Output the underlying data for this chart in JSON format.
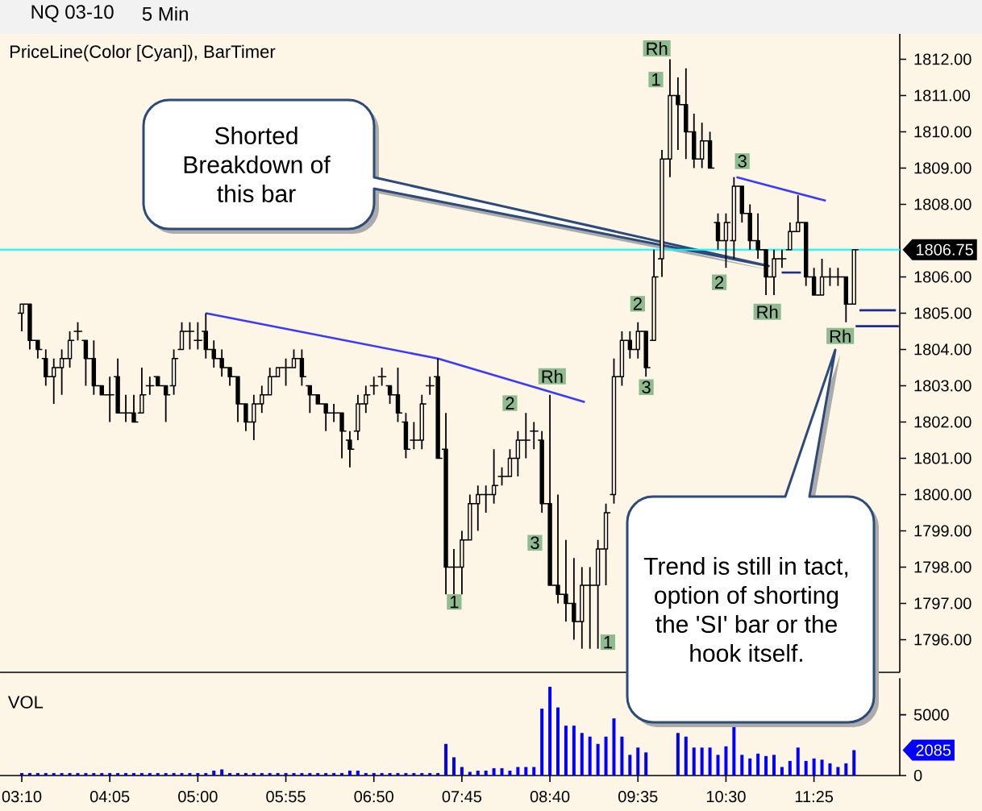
{
  "chart_data": [
    {
      "type": "candlestick",
      "title": "NQ 03-10",
      "subtitle": "5 Min",
      "x": [
        3.1667,
        3.25,
        3.3333,
        3.4167,
        3.5,
        3.5833,
        3.6667,
        3.75,
        3.8333,
        3.9167,
        4,
        4.0833,
        4.1667,
        4.25,
        4.3333,
        4.4167,
        4.5,
        4.5833,
        4.6667,
        4.75,
        4.8333,
        4.9167,
        5,
        5.0833,
        5.1667,
        5.25,
        5.3333,
        5.4167,
        5.5,
        5.5833,
        5.6667,
        5.75,
        5.8333,
        5.9167,
        6,
        6.0833,
        6.1667,
        6.25,
        6.3333,
        6.4167,
        6.5,
        6.5833,
        6.6667,
        6.75,
        6.8333,
        6.9167,
        7,
        7.0833,
        7.1667,
        7.25,
        7.3333,
        7.4167,
        7.5,
        7.5833,
        7.6667,
        7.75,
        7.8333,
        7.9167,
        8,
        8.0833,
        8.1667,
        8.25,
        8.3333,
        8.4167,
        8.5,
        8.5833,
        8.6667,
        8.75,
        8.8333,
        8.9167,
        9,
        9.0833,
        9.1667,
        9.25,
        9.3333,
        9.4167,
        9.5,
        9.5833,
        9.6667,
        9.75,
        9.8333,
        9.9167,
        10,
        10.0833,
        10.1667,
        10.25,
        10.3333,
        10.4167,
        10.5,
        10.5833,
        10.6667,
        10.75,
        10.8333,
        10.9167,
        11,
        11.0833,
        11.1667,
        11.25,
        11.3333,
        11.4167,
        11.5,
        11.5833,
        11.6667,
        11.75,
        11.8333
      ],
      "ohlc": [
        [
          1805.0,
          1805.25,
          1804.5,
          1805.25
        ],
        [
          1805.25,
          1805.25,
          1804.0,
          1804.25
        ],
        [
          1804.25,
          1804.25,
          1803.75,
          1804.0
        ],
        [
          1803.75,
          1804.0,
          1803.0,
          1803.25
        ],
        [
          1803.25,
          1803.75,
          1802.5,
          1803.5
        ],
        [
          1803.5,
          1804.0,
          1802.75,
          1803.75
        ],
        [
          1803.75,
          1804.5,
          1803.5,
          1804.25
        ],
        [
          1804.5,
          1804.75,
          1804.25,
          1804.5
        ],
        [
          1804.25,
          1804.25,
          1803.0,
          1803.75
        ],
        [
          1803.75,
          1804.25,
          1802.75,
          1803.0
        ],
        [
          1803.0,
          1803.0,
          1802.75,
          1802.75
        ],
        [
          1802.75,
          1803.25,
          1802.0,
          1802.75
        ],
        [
          1803.25,
          1803.75,
          1802.25,
          1802.25
        ],
        [
          1802.25,
          1802.75,
          1802.0,
          1802.25
        ],
        [
          1802.25,
          1802.75,
          1802.0,
          1802.0
        ],
        [
          1802.25,
          1803.5,
          1802.25,
          1802.75
        ],
        [
          1803.0,
          1803.25,
          1802.75,
          1803.0
        ],
        [
          1803.25,
          1803.25,
          1803.0,
          1803.0
        ],
        [
          1803.0,
          1803.0,
          1802.0,
          1802.75
        ],
        [
          1803.0,
          1804.0,
          1802.75,
          1803.75
        ],
        [
          1804.0,
          1804.75,
          1804.0,
          1804.5
        ],
        [
          1804.5,
          1804.75,
          1804.0,
          1804.5
        ],
        [
          1804.25,
          1804.75,
          1804.0,
          1804.25
        ],
        [
          1804.5,
          1805.0,
          1803.75,
          1804.0
        ],
        [
          1804.0,
          1804.25,
          1803.5,
          1803.75
        ],
        [
          1803.75,
          1804.0,
          1803.25,
          1803.5
        ],
        [
          1803.5,
          1803.5,
          1803.0,
          1803.25
        ],
        [
          1803.25,
          1803.25,
          1802.0,
          1802.5
        ],
        [
          1802.5,
          1802.5,
          1801.75,
          1802.0
        ],
        [
          1802.0,
          1802.75,
          1801.5,
          1802.5
        ],
        [
          1802.5,
          1803.0,
          1802.25,
          1802.75
        ],
        [
          1802.75,
          1803.5,
          1802.75,
          1803.25
        ],
        [
          1803.25,
          1803.5,
          1803.25,
          1803.5
        ],
        [
          1803.5,
          1803.75,
          1803.0,
          1803.5
        ],
        [
          1803.5,
          1804.0,
          1803.5,
          1803.75
        ],
        [
          1803.75,
          1804.0,
          1803.0,
          1803.25
        ],
        [
          1803.0,
          1803.0,
          1802.25,
          1802.75
        ],
        [
          1802.75,
          1802.75,
          1802.5,
          1802.5
        ],
        [
          1802.5,
          1802.5,
          1801.75,
          1802.25
        ],
        [
          1802.25,
          1802.5,
          1802.0,
          1802.25
        ],
        [
          1802.25,
          1802.25,
          1801.0,
          1801.75
        ],
        [
          1801.5,
          1801.75,
          1800.75,
          1801.25
        ],
        [
          1801.75,
          1802.75,
          1801.5,
          1802.5
        ],
        [
          1802.5,
          1803.0,
          1802.25,
          1802.75
        ],
        [
          1803.0,
          1803.25,
          1802.75,
          1803.0
        ],
        [
          1803.25,
          1803.5,
          1803.0,
          1803.25
        ],
        [
          1803.0,
          1803.0,
          1802.5,
          1802.75
        ],
        [
          1802.75,
          1803.5,
          1802.0,
          1802.25
        ],
        [
          1802.0,
          1802.25,
          1801.0,
          1801.25
        ],
        [
          1801.5,
          1802.0,
          1801.25,
          1801.5
        ],
        [
          1801.5,
          1802.75,
          1801.25,
          1802.5
        ],
        [
          1803.0,
          1803.25,
          1802.75,
          1803.0
        ],
        [
          1803.25,
          1803.75,
          1801.0,
          1801.0
        ],
        [
          1801.25,
          1802.25,
          1797.25,
          1798.0
        ],
        [
          1798.0,
          1798.5,
          1797.25,
          1798.0
        ],
        [
          1798.0,
          1799.0,
          1797.25,
          1798.75
        ],
        [
          1798.75,
          1800.0,
          1798.75,
          1799.75
        ],
        [
          1799.75,
          1800.25,
          1799.0,
          1800.0
        ],
        [
          1800.0,
          1800.25,
          1799.5,
          1800.0
        ],
        [
          1800.0,
          1801.25,
          1799.75,
          1800.25
        ],
        [
          1800.5,
          1800.75,
          1800.25,
          1800.5
        ],
        [
          1800.5,
          1801.25,
          1800.5,
          1801.0
        ],
        [
          1801.0,
          1801.75,
          1800.5,
          1801.5
        ],
        [
          1801.5,
          1802.25,
          1801.0,
          1801.5
        ],
        [
          1801.75,
          1802.0,
          1801.25,
          1801.75
        ],
        [
          1801.5,
          1801.75,
          1799.5,
          1799.75
        ],
        [
          1799.75,
          1802.75,
          1797.5,
          1797.5
        ],
        [
          1797.5,
          1800.0,
          1797.0,
          1797.25
        ],
        [
          1797.25,
          1798.75,
          1796.5,
          1797.0
        ],
        [
          1797.0,
          1798.25,
          1796.0,
          1796.5
        ],
        [
          1796.5,
          1798.0,
          1795.75,
          1797.5
        ],
        [
          1797.5,
          1798.0,
          1795.75,
          1797.5
        ],
        [
          1797.5,
          1798.75,
          1795.75,
          1798.5
        ],
        [
          1798.5,
          1799.75,
          1797.5,
          1799.5
        ],
        [
          1800.0,
          1803.75,
          1799.75,
          1803.25
        ],
        [
          1803.25,
          1804.5,
          1803.0,
          1804.25
        ],
        [
          1804.25,
          1804.5,
          1803.75,
          1804.0
        ],
        [
          1804.0,
          1804.75,
          1803.75,
          1804.5
        ],
        [
          1804.5,
          1804.5,
          1803.25,
          1803.5
        ],
        [
          1804.25,
          1806.75,
          1804.25,
          1806.0
        ],
        [
          1806.5,
          1809.5,
          1806.0,
          1809.25
        ],
        [
          1809.25,
          1812.0,
          1808.75,
          1811.0
        ],
        [
          1811.0,
          1811.5,
          1809.5,
          1810.75
        ],
        [
          1810.75,
          1811.75,
          1809.25,
          1810.0
        ],
        [
          1810.0,
          1810.5,
          1809.0,
          1809.25
        ],
        [
          1809.25,
          1810.25,
          1809.0,
          1809.75
        ],
        [
          1809.75,
          1810.0,
          1809.0,
          1809.0
        ],
        [
          1807.5,
          1807.75,
          1806.75,
          1807.0
        ],
        [
          1807.0,
          1807.75,
          1806.25,
          1807.5
        ],
        [
          1807.0,
          1808.75,
          1806.5,
          1808.5
        ],
        [
          1808.5,
          1808.5,
          1807.5,
          1807.75
        ],
        [
          1807.75,
          1808.0,
          1806.75,
          1807.0
        ],
        [
          1807.0,
          1807.75,
          1806.5,
          1806.75
        ],
        [
          1806.75,
          1806.75,
          1805.5,
          1806.0
        ],
        [
          1806.0,
          1806.75,
          1805.5,
          1806.5
        ],
        [
          1806.5,
          1806.75,
          1806.25,
          1806.5
        ],
        [
          1806.75,
          1807.5,
          1806.75,
          1807.25
        ],
        [
          1807.25,
          1808.25,
          1807.25,
          1807.5
        ],
        [
          1807.5,
          1807.5,
          1805.75,
          1806.0
        ],
        [
          1806.0,
          1806.25,
          1805.5,
          1805.5
        ],
        [
          1805.5,
          1806.5,
          1805.5,
          1806.0
        ],
        [
          1806.0,
          1806.25,
          1805.75,
          1806.0
        ],
        [
          1806.0,
          1806.25,
          1805.75,
          1806.0
        ],
        [
          1806.0,
          1806.0,
          1804.75,
          1805.25
        ],
        [
          1805.25,
          1806.75,
          1805.25,
          1806.75
        ]
      ],
      "color": "#000000",
      "series": [
        {
          "type": "line",
          "x": [
            5.0833,
            7.5,
            9.03
          ],
          "values": [
            1805.0,
            1803.75,
            1802.55
          ],
          "color": "#3a3aff"
        },
        {
          "type": "line",
          "x": [
            10.61,
            11.54
          ],
          "values": [
            1808.75,
            1808.1
          ],
          "color": "#3a3aff"
        },
        {
          "type": "line",
          "x": [
            11.08,
            11.28
          ],
          "values": [
            1806.12,
            1806.12
          ],
          "color": "#1c2c8c"
        },
        {
          "type": "line",
          "x": [
            11.89,
            12.27
          ],
          "values": [
            1805.08,
            1805.08
          ],
          "color": "#1c2c8c"
        },
        {
          "type": "line",
          "x": [
            11.85,
            12.3
          ],
          "values": [
            1804.64,
            1804.64
          ],
          "color": "#1c2c8c"
        }
      ],
      "ref_lines": [
        {
          "axis": "y",
          "value": 1806.75,
          "label": "1806.75",
          "color": "#00ffff"
        }
      ],
      "xlim": [
        2.94,
        12.31
      ],
      "ylim": [
        1795.1,
        1812.7
      ],
      "yticks": [
        {
          "value": 1796,
          "label": "1796.00"
        },
        {
          "value": 1797,
          "label": "1797.00"
        },
        {
          "value": 1798,
          "label": "1798.00"
        },
        {
          "value": 1799,
          "label": "1799.00"
        },
        {
          "value": 1800,
          "label": "1800.00"
        },
        {
          "value": 1801,
          "label": "1801.00"
        },
        {
          "value": 1802,
          "label": "1802.00"
        },
        {
          "value": 1803,
          "label": "1803.00"
        },
        {
          "value": 1804,
          "label": "1804.00"
        },
        {
          "value": 1805,
          "label": "1805.00"
        },
        {
          "value": 1806,
          "label": "1806.00"
        },
        {
          "value": 1808,
          "label": "1808.00"
        },
        {
          "value": 1809,
          "label": "1809.00"
        },
        {
          "value": 1810,
          "label": "1810.00"
        },
        {
          "value": 1811,
          "label": "1811.00"
        },
        {
          "value": 1812,
          "label": "1812.00"
        }
      ],
      "tick_labels": "y",
      "annotations": [
        "PriceLine(Color [Cyan]), BarTimer",
        "Shorted Breakdown of this bar",
        "Trend is still in tact, option of shorting the 'SI' bar or the hook itself.",
        {
          "text": "1",
          "x": 7.67,
          "y": 1797.04
        },
        {
          "text": "2",
          "x": 8.25,
          "y": 1802.52
        },
        {
          "text": "3",
          "x": 8.51,
          "y": 1798.67
        },
        {
          "text": "Rh",
          "x": 8.69,
          "y": 1803.26
        },
        {
          "text": "1",
          "x": 9.27,
          "y": 1795.93
        },
        {
          "text": "2",
          "x": 9.58,
          "y": 1805.26
        },
        {
          "text": "3",
          "x": 9.67,
          "y": 1802.96
        },
        {
          "text": "Rh",
          "x": 9.78,
          "y": 1812.3
        },
        {
          "text": "1",
          "x": 9.77,
          "y": 1811.44
        },
        {
          "text": "2",
          "x": 10.43,
          "y": 1805.85
        },
        {
          "text": "3",
          "x": 10.67,
          "y": 1809.19
        },
        {
          "text": "Rh",
          "x": 10.93,
          "y": 1805.04
        },
        {
          "text": "Rh",
          "x": 11.69,
          "y": 1804.37
        }
      ]
    },
    {
      "type": "bar",
      "title": "VOL",
      "x": [
        3.1667,
        3.25,
        3.3333,
        3.4167,
        3.5,
        3.5833,
        3.6667,
        3.75,
        3.8333,
        3.9167,
        4,
        4.0833,
        4.1667,
        4.25,
        4.3333,
        4.4167,
        4.5,
        4.5833,
        4.6667,
        4.75,
        4.8333,
        4.9167,
        5,
        5.0833,
        5.1667,
        5.25,
        5.3333,
        5.4167,
        5.5,
        5.5833,
        5.6667,
        5.75,
        5.8333,
        5.9167,
        6,
        6.0833,
        6.1667,
        6.25,
        6.3333,
        6.4167,
        6.5,
        6.5833,
        6.6667,
        6.75,
        6.8333,
        6.9167,
        7,
        7.0833,
        7.1667,
        7.25,
        7.3333,
        7.4167,
        7.5,
        7.5833,
        7.6667,
        7.75,
        7.8333,
        7.9167,
        8,
        8.0833,
        8.1667,
        8.25,
        8.3333,
        8.4167,
        8.5,
        8.5833,
        8.6667,
        8.75,
        8.8333,
        8.9167,
        9,
        9.0833,
        9.1667,
        9.25,
        9.3333,
        9.4167,
        9.5,
        9.5833,
        9.6667,
        9.75,
        9.8333,
        9.9167,
        10,
        10.0833,
        10.1667,
        10.25,
        10.3333,
        10.4167,
        10.5,
        10.5833,
        10.6667,
        10.75,
        10.8333,
        10.9167,
        11,
        11.0833,
        11.1667,
        11.25,
        11.3333,
        11.4167,
        11.5,
        11.5833,
        11.6667,
        11.75,
        11.8333
      ],
      "values": [
        200,
        200,
        200,
        200,
        200,
        200,
        200,
        200,
        200,
        200,
        200,
        200,
        200,
        200,
        200,
        200,
        200,
        200,
        200,
        200,
        200,
        200,
        200,
        200,
        400,
        500,
        200,
        200,
        200,
        200,
        200,
        200,
        200,
        200,
        200,
        200,
        200,
        200,
        200,
        200,
        200,
        400,
        400,
        200,
        200,
        200,
        200,
        200,
        200,
        200,
        200,
        200,
        200,
        2600,
        1500,
        700,
        300,
        400,
        400,
        600,
        600,
        400,
        700,
        700,
        700,
        5500,
        7300,
        5600,
        4100,
        4100,
        3500,
        3200,
        2600,
        3200,
        4700,
        3200,
        1700,
        2300,
        1900,
        null,
        null,
        null,
        3500,
        3200,
        2300,
        2300,
        2300,
        1700,
        2400,
        4100,
        1700,
        1400,
        1800,
        1600,
        1700,
        700,
        1200,
        2300,
        1200,
        1400,
        1300,
        1000,
        700,
        1000,
        2085
      ],
      "color": "#0000ff",
      "xlim": [
        2.94,
        12.31
      ],
      "ylim": [
        0,
        8000
      ],
      "yticks": [
        0,
        5000
      ],
      "xticks": [
        {
          "value": 3.1667,
          "label": "03:10"
        },
        {
          "value": 4.0833,
          "label": "04:05"
        },
        {
          "value": 5,
          "label": "05:00"
        },
        {
          "value": 5.9167,
          "label": "05:55"
        },
        {
          "value": 6.8333,
          "label": "06:50"
        },
        {
          "value": 7.75,
          "label": "07:45"
        },
        {
          "value": 8.6667,
          "label": "08:40"
        },
        {
          "value": 9.5833,
          "label": "09:35"
        },
        {
          "value": 10.5,
          "label": "10:30"
        },
        {
          "value": 11.4167,
          "label": "11:25"
        }
      ],
      "annotations": [
        "2085"
      ]
    }
  ]
}
